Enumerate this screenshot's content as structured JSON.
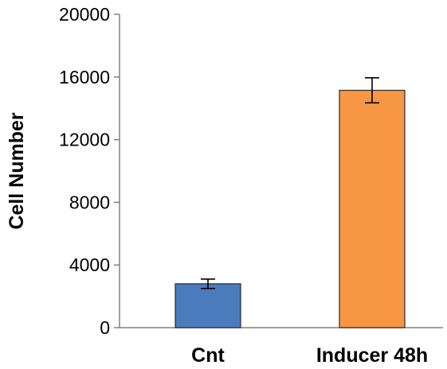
{
  "chart_data": {
    "type": "bar",
    "title": "",
    "xlabel": "",
    "ylabel": "Cell Number",
    "categories": [
      "Cnt",
      "Inducer 48h"
    ],
    "values": [
      2800,
      15150
    ],
    "error": [
      300,
      800
    ],
    "colors": [
      "#4a7bbd",
      "#f79644"
    ],
    "ylim": [
      0,
      20000
    ],
    "yticks": [
      0,
      4000,
      8000,
      12000,
      16000,
      20000
    ],
    "ytick_labels": [
      "0",
      "4000",
      "8000",
      "12000",
      "16000",
      "20000"
    ],
    "grid": false,
    "legend": "none"
  }
}
